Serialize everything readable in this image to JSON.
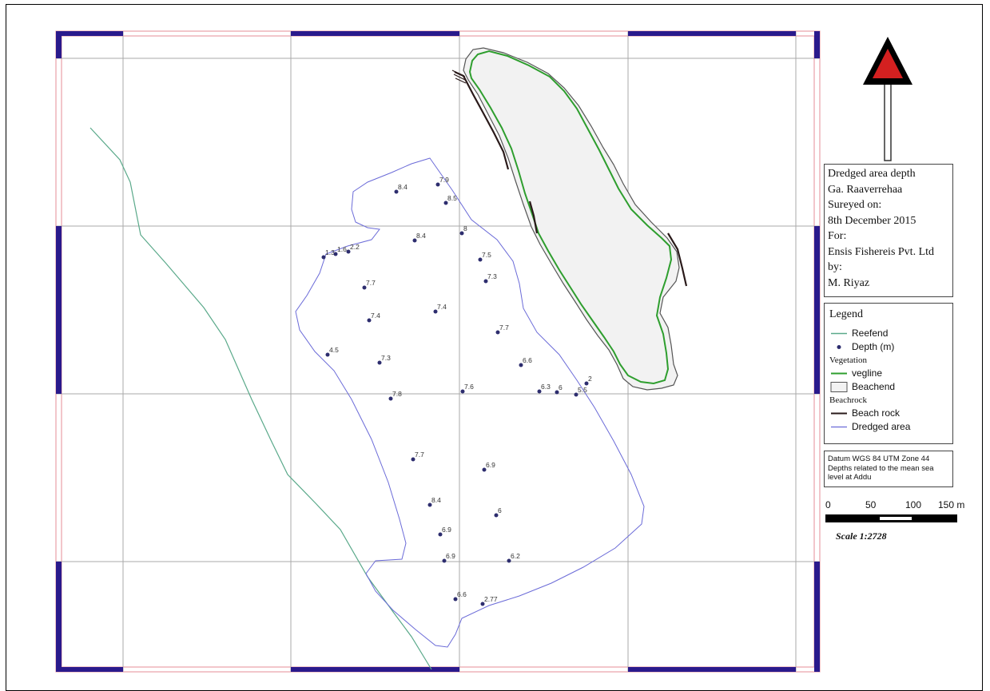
{
  "title_block": {
    "lines": [
      "Dredged area depth",
      "Ga. Raaverrehaa",
      "Sureyed on:",
      "8th December 2015",
      "For:",
      "Ensis Fishereis Pvt. Ltd",
      "by:",
      "M. Riyaz"
    ]
  },
  "legend": {
    "heading": "Legend",
    "reefend": "Reefend",
    "depth": "Depth (m)",
    "vegetation_group": "Vegetation",
    "vegline": "vegline",
    "beachend": "Beachend",
    "beachrock_group": "Beachrock",
    "beach_rock": "Beach rock",
    "dredged_area": "Dredged area"
  },
  "datum": {
    "line1": "Datum WGS 84 UTM Zone 44",
    "line2": "Depths related to the mean sea",
    "line3": "level at Addu"
  },
  "scale": {
    "ticks": [
      "0",
      "50",
      "100",
      "150 m"
    ],
    "text": "Scale 1:2728"
  },
  "colors": {
    "reefend": "#5aa98a",
    "depth_point": "#2d2d6e",
    "vegline": "#2e9e2e",
    "beachend_fill": "#f2f2f2",
    "beachend_stroke": "#555555",
    "beach_rock": "#2a1a1a",
    "dredged_area": "#6b6bd8",
    "frame_blue": "#2a1a8c",
    "frame_pink": "#e8a0a8",
    "north_arrow": "#d42020"
  },
  "depth_labels": [
    "8.4",
    "7.9",
    "8.5",
    "8",
    "8.4",
    "1.3",
    "1.6",
    "2.2",
    "7.5",
    "7.3",
    "7.7",
    "7.4",
    "7.4",
    "7.7",
    "4.5",
    "7.3",
    "6.6",
    "7.6",
    "6.3",
    "6",
    "5.5",
    "2",
    "7.8",
    "7.7",
    "6.9",
    "8.4",
    "6",
    "6.9",
    "6.9",
    "6.2",
    "6.6",
    "2.77"
  ]
}
